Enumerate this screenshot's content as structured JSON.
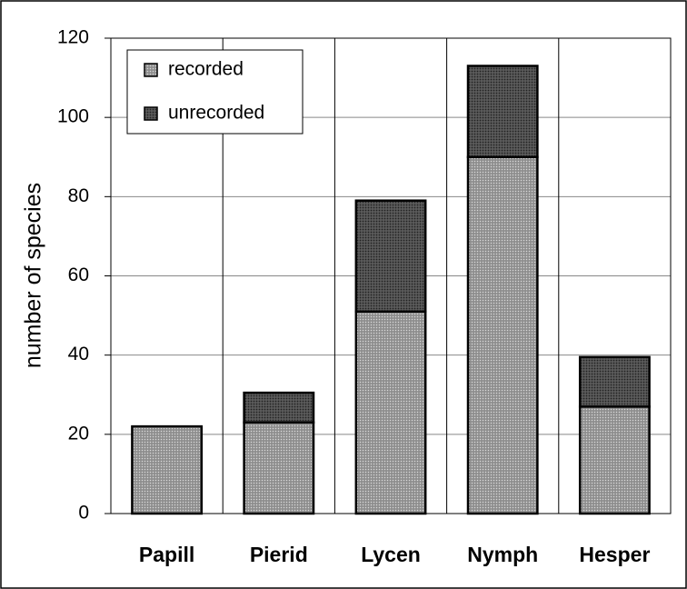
{
  "chart_data": {
    "type": "stacked_bar",
    "y_label": "number of species",
    "categories": [
      "Papill",
      "Pierid",
      "Lycen",
      "Nymph",
      "Hesper"
    ],
    "series": [
      {
        "name": "recorded",
        "color": "#9a9a9a",
        "values": [
          22,
          23,
          51,
          90,
          27
        ]
      },
      {
        "name": "unrecorded",
        "color": "#4a4a4a",
        "values": [
          0,
          7.5,
          28,
          23,
          12.5
        ]
      }
    ],
    "ylim": [
      0,
      120
    ],
    "yticks": [
      0,
      20,
      40,
      60,
      80,
      100,
      120
    ],
    "grid": true,
    "legend": "upper left"
  }
}
